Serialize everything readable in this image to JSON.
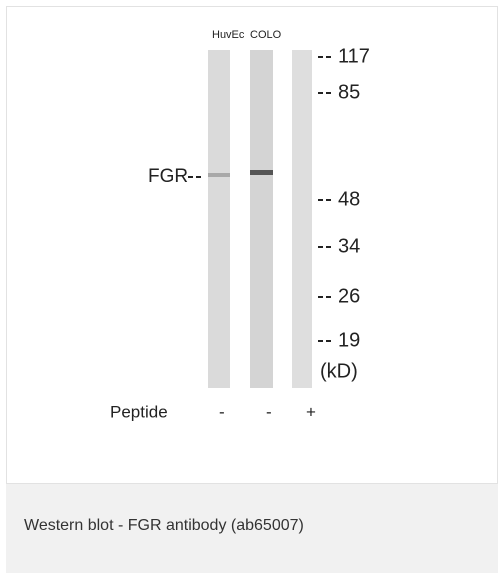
{
  "figure": {
    "lanes": [
      "HuvEc",
      "COLO"
    ],
    "target": "FGR",
    "markers": [
      117,
      85,
      48,
      34,
      26,
      19
    ],
    "unit": "(kD)",
    "peptide": {
      "label": "Peptide",
      "lanes": [
        "-",
        "-",
        "+"
      ]
    },
    "caption": "Western blot - FGR antibody (ab65007)"
  }
}
